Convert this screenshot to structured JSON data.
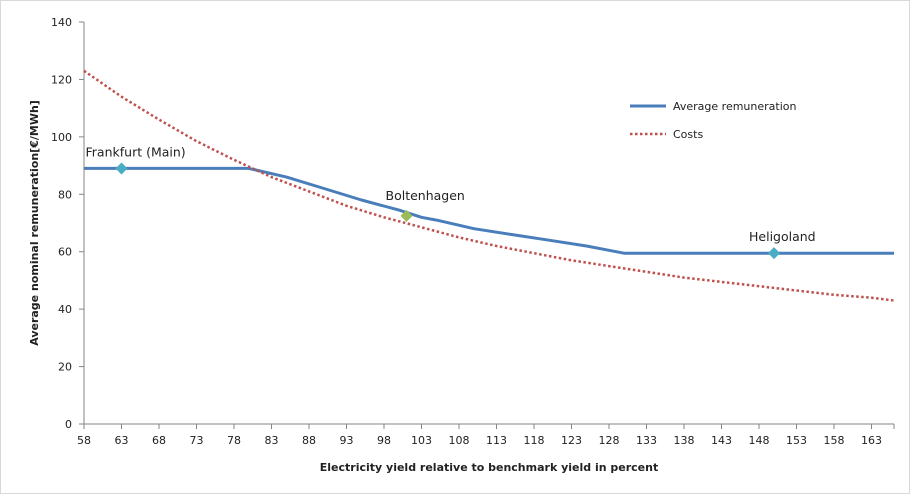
{
  "chart_data": {
    "type": "line",
    "title": "",
    "xlabel": "Electricity yield relative to benchmark yield in percent",
    "ylabel": "Average nominal remuneration[€/MWh]",
    "xlim": [
      58,
      166
    ],
    "ylim": [
      0,
      140
    ],
    "x_ticks": [
      58,
      63,
      68,
      73,
      78,
      83,
      88,
      93,
      98,
      103,
      108,
      113,
      118,
      123,
      128,
      133,
      138,
      143,
      148,
      153,
      158,
      163
    ],
    "y_ticks": [
      0,
      20,
      40,
      60,
      80,
      100,
      120,
      140
    ],
    "grid": false,
    "legend_position": "top-right",
    "colors": {
      "average_remuneration": "#4a7ebb",
      "costs": "#c0504d",
      "marker_teal": "#4bacc6",
      "marker_green": "#9bbb59"
    },
    "series": [
      {
        "name": "Average remuneration",
        "style": "solid",
        "x": [
          58,
          80,
          85,
          90,
          95,
          100,
          103,
          105,
          110,
          115,
          120,
          125,
          128,
          130,
          135,
          140,
          145,
          150,
          155,
          160,
          166
        ],
        "y": [
          89,
          89,
          86,
          82,
          78,
          74.5,
          72,
          71,
          68,
          66,
          64,
          62,
          60.5,
          59.5,
          59.5,
          59.5,
          59.5,
          59.5,
          59.5,
          59.5,
          59.5
        ]
      },
      {
        "name": "Costs",
        "style": "dotted",
        "x": [
          58,
          63,
          68,
          73,
          78,
          83,
          88,
          93,
          98,
          103,
          108,
          113,
          118,
          123,
          128,
          133,
          138,
          143,
          148,
          153,
          158,
          163,
          166
        ],
        "y": [
          123,
          114,
          106,
          98.5,
          92,
          86,
          81,
          76,
          72,
          68.5,
          65,
          62,
          59.5,
          57,
          55,
          53,
          51,
          49.5,
          48,
          46.5,
          45,
          44,
          43
        ]
      }
    ],
    "annotations": [
      {
        "label": "Frankfurt (Main)",
        "x": 63,
        "y": 89,
        "marker_color": "#4bacc6"
      },
      {
        "label": "Boltenhagen",
        "x": 101,
        "y": 72.5,
        "marker_color": "#9bbb59"
      },
      {
        "label": "Heligoland",
        "x": 150,
        "y": 59.5,
        "marker_color": "#4bacc6"
      }
    ]
  }
}
